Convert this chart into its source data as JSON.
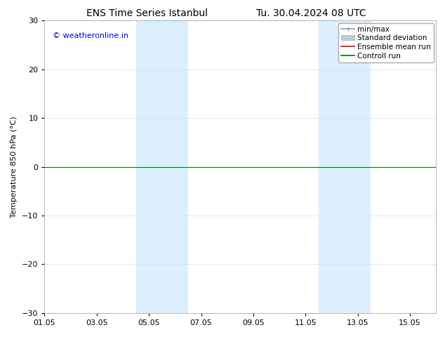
{
  "title_left": "ENS Time Series Istanbul",
  "title_right": "Tu. 30.04.2024 08 UTC",
  "ylabel": "Temperature 850 hPa (°C)",
  "ylim": [
    -30,
    30
  ],
  "yticks": [
    -30,
    -20,
    -10,
    0,
    10,
    20,
    30
  ],
  "xtick_labels": [
    "01.05",
    "03.05",
    "05.05",
    "07.05",
    "09.05",
    "11.05",
    "13.05",
    "15.05"
  ],
  "xtick_positions": [
    0,
    2,
    4,
    6,
    8,
    10,
    12,
    14
  ],
  "x_min": 0,
  "x_max": 15,
  "watermark": "© weatheronline.in",
  "watermark_color": "#0000dd",
  "background_color": "#ffffff",
  "shaded_bands": [
    {
      "x_start": 3.5,
      "x_end": 4.5,
      "color": "#ddeeff"
    },
    {
      "x_start": 4.5,
      "x_end": 5.5,
      "color": "#ddeeff"
    },
    {
      "x_start": 10.5,
      "x_end": 11.5,
      "color": "#ddeeff"
    },
    {
      "x_start": 11.5,
      "x_end": 12.5,
      "color": "#ddeeff"
    }
  ],
  "control_run_y": 0.0,
  "control_run_color": "#007700",
  "control_run_lw": 0.8,
  "ensemble_mean_color": "#dd0000",
  "legend_items": [
    {
      "label": "min/max",
      "color": "#999999",
      "lw": 1.2
    },
    {
      "label": "Standard deviation",
      "color": "#bbccdd",
      "lw": 7
    },
    {
      "label": "Ensemble mean run",
      "color": "#dd0000",
      "lw": 1.2
    },
    {
      "label": "Controll run",
      "color": "#007700",
      "lw": 1.2
    }
  ],
  "title_fontsize": 10,
  "axis_label_fontsize": 8,
  "tick_fontsize": 8,
  "watermark_fontsize": 8,
  "legend_fontsize": 7.5
}
